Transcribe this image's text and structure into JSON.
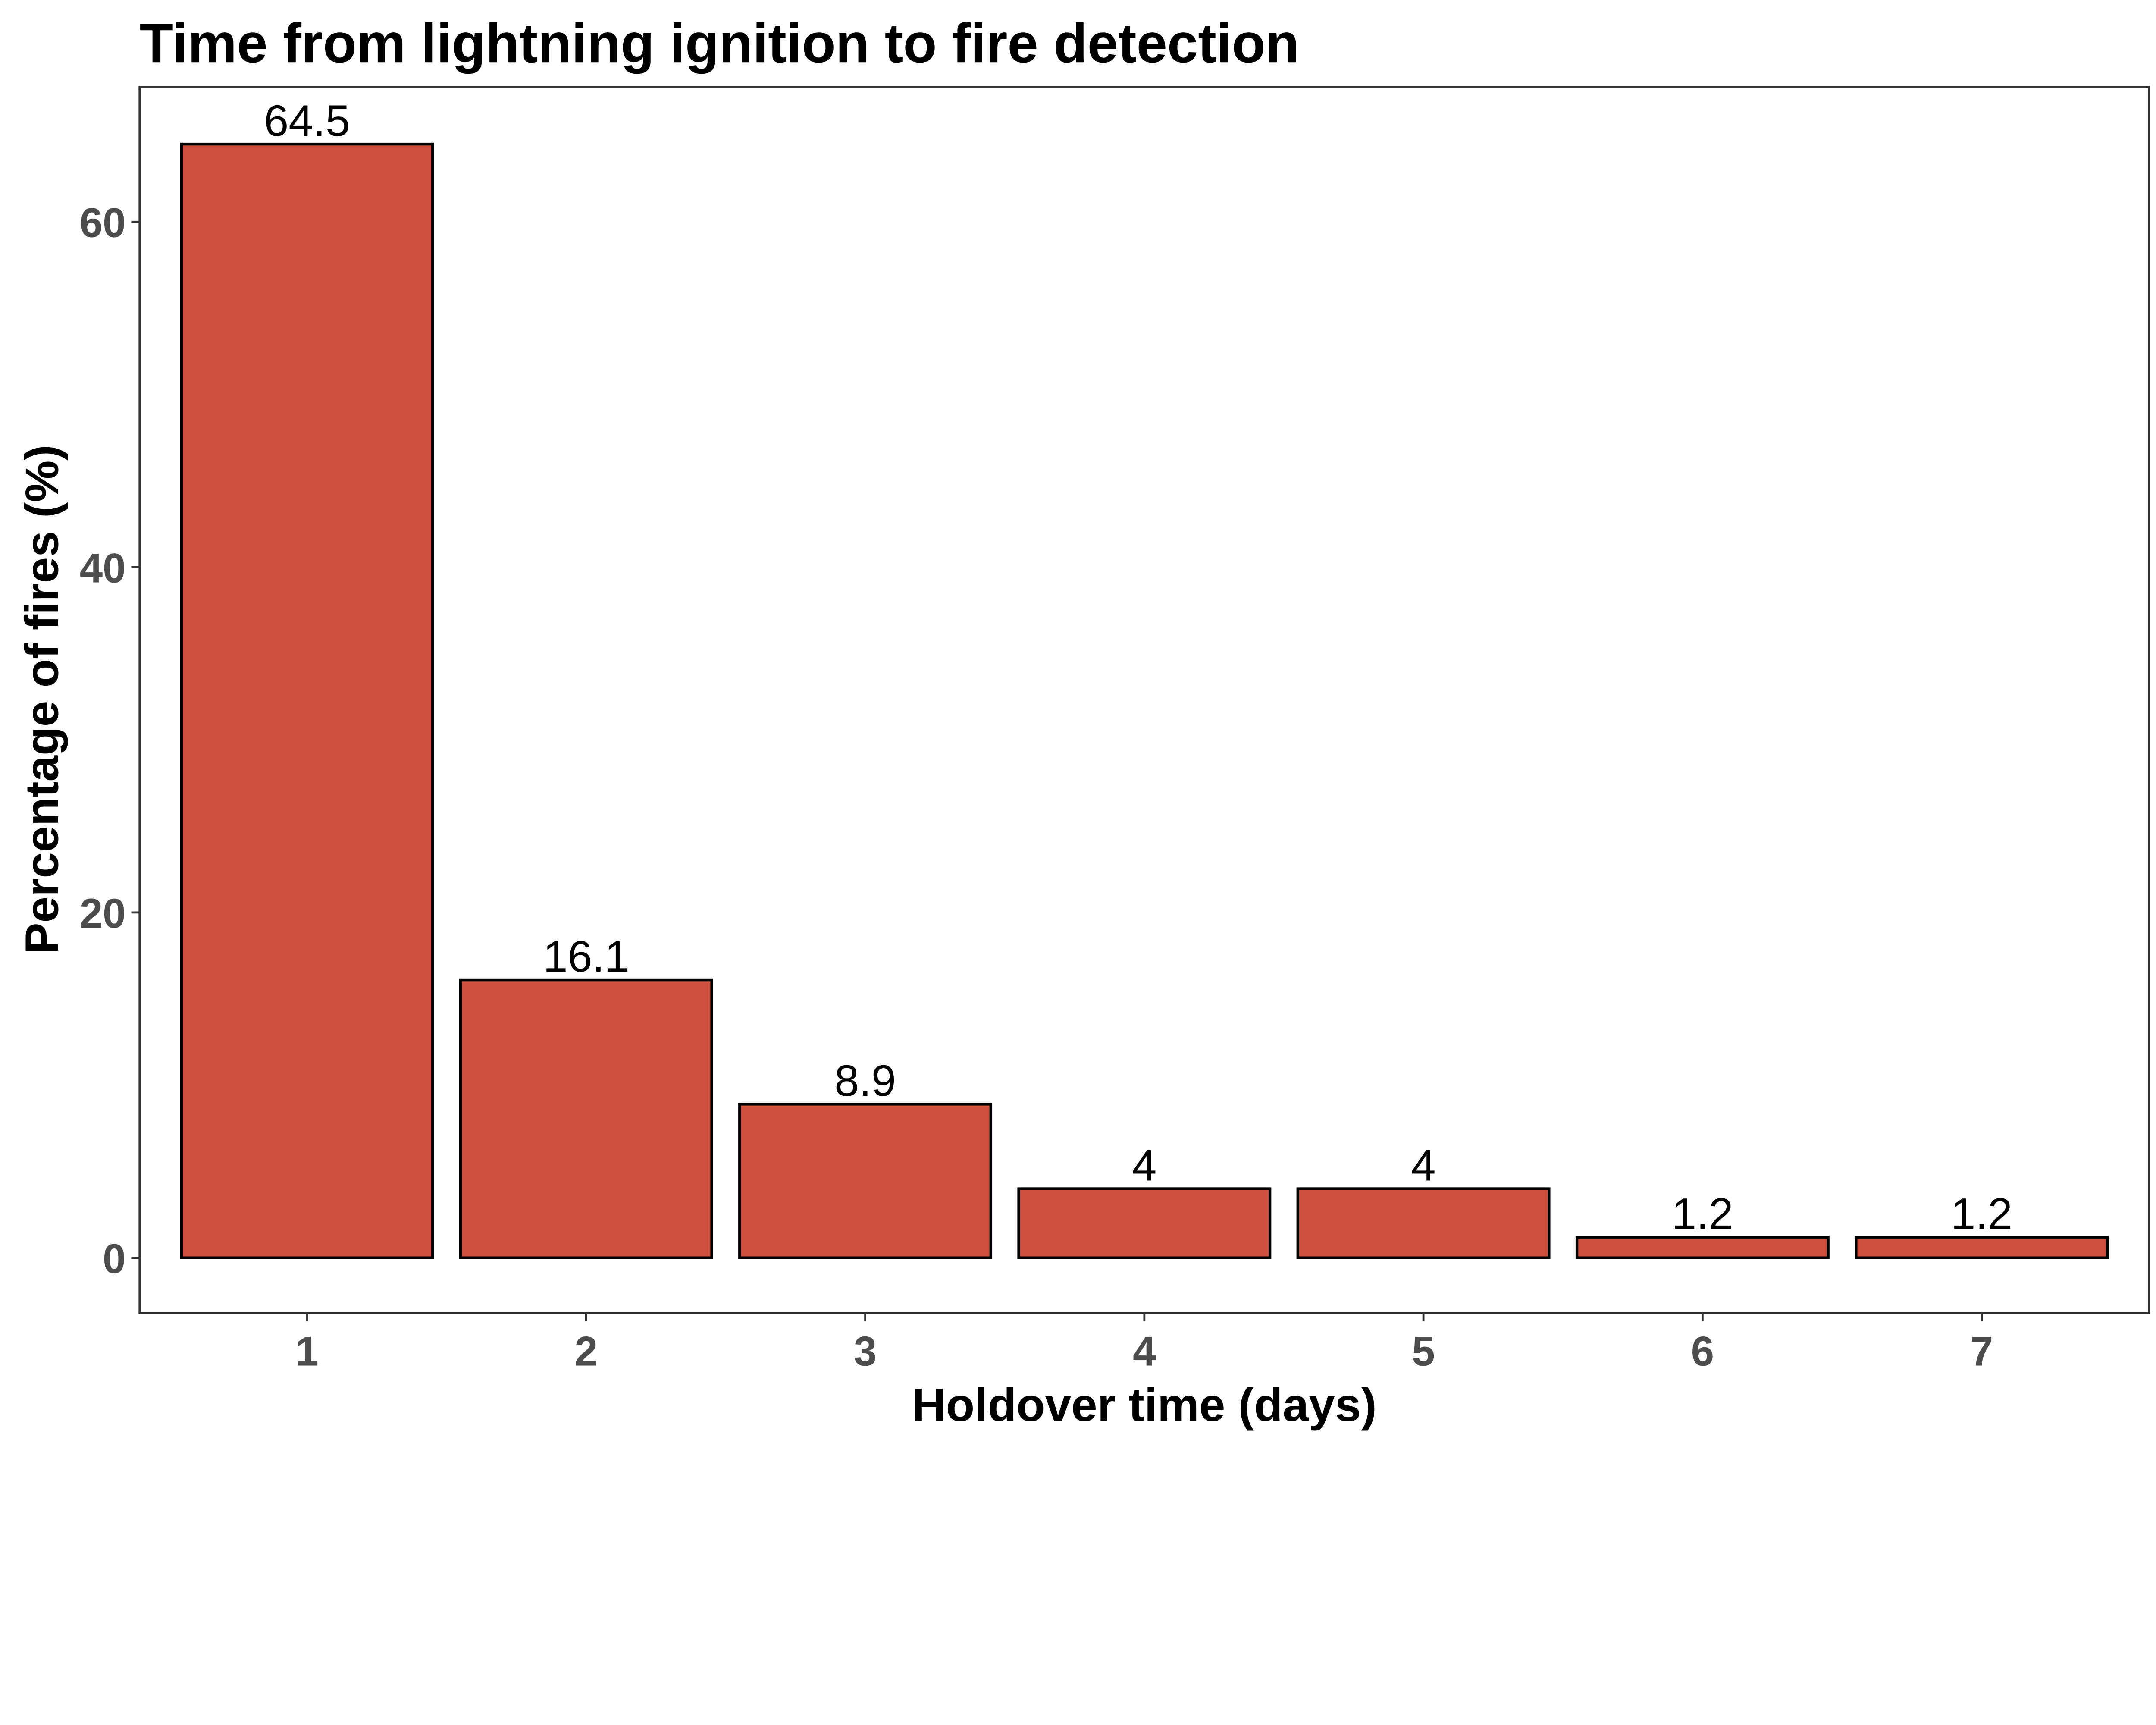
{
  "chart_data": {
    "type": "bar",
    "title": "Time from lightning ignition to fire detection",
    "xlabel": "Holdover time (days)",
    "ylabel": "Percentage of fires (%)",
    "categories": [
      "1",
      "2",
      "3",
      "4",
      "5",
      "6",
      "7"
    ],
    "values": [
      64.5,
      16.1,
      8.9,
      4,
      4,
      1.2,
      1.2
    ],
    "data_labels": [
      "64.5",
      "16.1",
      "8.9",
      "4",
      "4",
      "1.2",
      "1.2"
    ],
    "yticks": [
      0,
      20,
      40,
      60
    ],
    "ytick_labels": [
      "0",
      "20",
      "40",
      "60"
    ],
    "ylim": [
      -3.2,
      67.8
    ],
    "grid": false,
    "colors": {
      "bar_fill": "#CD503D",
      "bar_stroke": "#000000",
      "tick_text": "#4D4D4D"
    }
  }
}
